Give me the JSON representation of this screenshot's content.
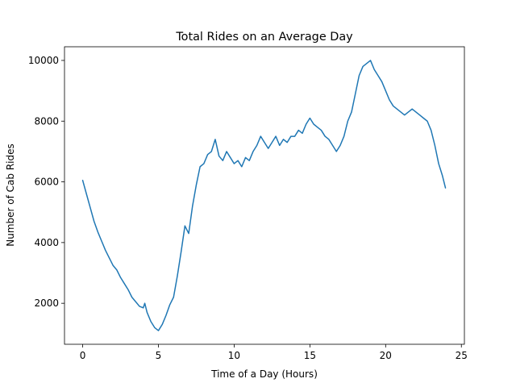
{
  "chart_data": {
    "type": "line",
    "title": "Total Rides on an Average Day",
    "xlabel": "Time of a Day (Hours)",
    "ylabel": "Number of Cab Rides",
    "xlim": [
      -1.2,
      25.2
    ],
    "ylim": [
      650,
      10450
    ],
    "xticks": [
      0,
      5,
      10,
      15,
      20,
      25
    ],
    "yticks": [
      2000,
      4000,
      6000,
      8000,
      10000
    ],
    "grid": false,
    "legend": "none",
    "line_color": "#1f77b4",
    "series": [
      {
        "x": [
          0,
          0.25,
          0.5,
          0.75,
          1,
          1.25,
          1.5,
          1.75,
          2,
          2.25,
          2.5,
          2.75,
          3,
          3.25,
          3.5,
          3.75,
          4,
          4.1,
          4.25,
          4.5,
          4.75,
          5,
          5.25,
          5.5,
          5.75,
          6,
          6.25,
          6.5,
          6.75,
          7,
          7.25,
          7.5,
          7.75,
          8,
          8.25,
          8.5,
          8.75,
          9,
          9.25,
          9.5,
          9.75,
          10,
          10.25,
          10.5,
          10.75,
          11,
          11.25,
          11.5,
          11.75,
          12,
          12.25,
          12.5,
          12.75,
          13,
          13.25,
          13.5,
          13.75,
          14,
          14.25,
          14.5,
          14.75,
          15,
          15.25,
          15.5,
          15.75,
          16,
          16.25,
          16.5,
          16.75,
          17,
          17.25,
          17.5,
          17.75,
          18,
          18.25,
          18.5,
          18.75,
          19,
          19.25,
          19.5,
          19.75,
          20,
          20.25,
          20.5,
          20.75,
          21,
          21.25,
          21.5,
          21.75,
          22,
          22.25,
          22.5,
          22.75,
          23,
          23.25,
          23.5,
          23.75,
          23.95
        ],
        "y": [
          6050,
          5600,
          5150,
          4700,
          4350,
          4050,
          3750,
          3500,
          3250,
          3100,
          2850,
          2650,
          2450,
          2200,
          2050,
          1900,
          1850,
          2000,
          1700,
          1400,
          1200,
          1100,
          1300,
          1600,
          1950,
          2200,
          2900,
          3700,
          4550,
          4300,
          5200,
          5900,
          6500,
          6600,
          6900,
          7000,
          7400,
          6850,
          6700,
          7000,
          6800,
          6600,
          6700,
          6500,
          6800,
          6700,
          7000,
          7200,
          7500,
          7300,
          7100,
          7300,
          7500,
          7200,
          7400,
          7300,
          7500,
          7500,
          7700,
          7600,
          7900,
          8100,
          7900,
          7800,
          7700,
          7500,
          7400,
          7200,
          7000,
          7200,
          7500,
          8000,
          8300,
          8900,
          9500,
          9800,
          9900,
          10000,
          9700,
          9500,
          9300,
          9000,
          8700,
          8500,
          8400,
          8300,
          8200,
          8300,
          8400,
          8300,
          8200,
          8100,
          8000,
          7700,
          7200,
          6600,
          6200,
          5800
        ]
      }
    ]
  }
}
